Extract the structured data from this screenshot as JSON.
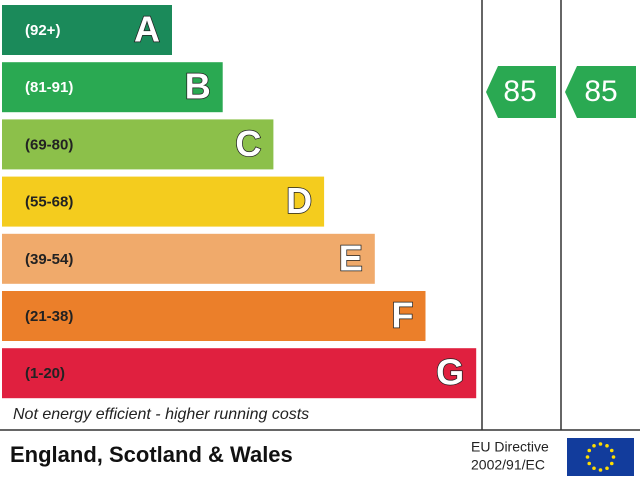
{
  "bands": [
    {
      "range": "(92+)",
      "letter": "A"
    },
    {
      "range": "(81-91)",
      "letter": "B"
    },
    {
      "range": "(69-80)",
      "letter": "C"
    },
    {
      "range": "(55-68)",
      "letter": "D"
    },
    {
      "range": "(39-54)",
      "letter": "E"
    },
    {
      "range": "(21-38)",
      "letter": "F"
    },
    {
      "range": "(1-20)",
      "letter": "G"
    }
  ],
  "ratings": {
    "current": 85,
    "potential": 85
  },
  "footer_note": "Not energy efficient - higher running costs",
  "region": "England, Scotland & Wales",
  "directive": {
    "line1": "EU Directive",
    "line2": "2002/91/EC"
  }
}
